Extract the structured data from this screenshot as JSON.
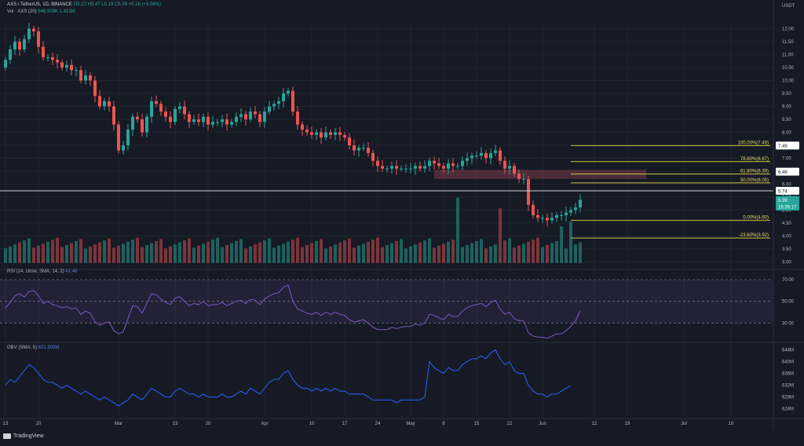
{
  "header": {
    "symbol": "AXS / TetherUS, 1D, BINANCE",
    "ohlc": "O5.22 H5.47 L5.19 C5.39 +0.16 (+3.06%)",
    "volume_label": "Vol · AXS (20)",
    "volume_values": "648.909K 1.413M",
    "rsi_label": "RSI (14, close, SMA, 14, 2)",
    "rsi_value": "41.48",
    "obv_label": "OBV (SMA, 5)",
    "obv_value": "631.909M",
    "branding": "TradingView"
  },
  "chart_data": {
    "type": "candlestick",
    "currency_label": "USDT",
    "price_axis": {
      "range": [
        2.8,
        12.2
      ],
      "ticks": [
        "12.00",
        "11.50",
        "11.00",
        "10.50",
        "10.00",
        "9.50",
        "9.00",
        "8.50",
        "8.00",
        "7.50",
        "7.00",
        "6.50",
        "6.00",
        "5.50",
        "5.00",
        "4.50",
        "4.00",
        "3.50",
        "3.00"
      ]
    },
    "time_axis": {
      "labels": [
        "13",
        "20",
        "Mar",
        "13",
        "20",
        "Apr",
        "10",
        "17",
        "24",
        "May",
        "8",
        "15",
        "22",
        "Jun",
        "12",
        "19",
        "Jul",
        "10"
      ],
      "label_day_index": [
        0,
        7,
        24,
        36,
        43,
        55,
        65,
        72,
        79,
        86,
        93,
        100,
        107,
        114,
        125,
        132,
        144,
        154
      ]
    },
    "close_series": [
      10.8,
      11.2,
      11.5,
      11.2,
      11.6,
      12.0,
      11.9,
      11.3,
      10.9,
      10.9,
      10.8,
      10.7,
      10.5,
      10.6,
      10.4,
      10.4,
      10.0,
      10.2,
      10.0,
      9.4,
      9.0,
      9.2,
      9.0,
      8.3,
      7.3,
      7.5,
      8.1,
      8.6,
      8.5,
      8.0,
      8.6,
      9.2,
      9.1,
      8.8,
      8.6,
      8.4,
      8.9,
      9.0,
      8.7,
      8.4,
      8.5,
      8.4,
      8.6,
      8.3,
      8.4,
      8.4,
      8.5,
      8.3,
      8.4,
      8.6,
      8.7,
      8.5,
      8.8,
      8.7,
      8.4,
      8.8,
      9.0,
      9.1,
      9.2,
      9.5,
      9.6,
      8.8,
      8.3,
      8.1,
      8.0,
      7.9,
      8.0,
      7.8,
      8.0,
      7.9,
      8.0,
      7.9,
      7.8,
      7.5,
      7.3,
      7.4,
      7.4,
      7.2,
      6.9,
      6.7,
      6.6,
      6.6,
      6.7,
      6.6,
      6.6,
      6.6,
      6.6,
      6.7,
      6.6,
      6.7,
      6.9,
      6.8,
      6.7,
      6.6,
      6.8,
      6.7,
      6.7,
      6.9,
      7.0,
      7.1,
      7.1,
      7.2,
      7.0,
      7.2,
      7.3,
      6.9,
      6.6,
      6.7,
      6.4,
      6.2,
      6.2,
      5.2,
      4.8,
      4.7,
      4.7,
      4.6,
      4.7,
      4.8,
      4.8,
      4.9,
      5.0,
      5.1,
      5.39
    ],
    "fibonacci": [
      {
        "label": "100.00%(7.49)",
        "value": 7.49
      },
      {
        "label": "78.60%(6.87)",
        "value": 6.87
      },
      {
        "label": "61.80%(6.39)",
        "value": 6.39
      },
      {
        "label": "50.00%(6.05)",
        "value": 6.05
      },
      {
        "label": "0.00%(4.60)",
        "value": 4.6
      },
      {
        "label": "-23.60%(3.92)",
        "value": 3.92
      }
    ],
    "horizontal_line": {
      "value": 5.74,
      "label": "5.74"
    },
    "resistance_zone": {
      "from": 6.2,
      "to": 6.55
    },
    "price_labels": [
      {
        "text": "7.49",
        "value": 7.49,
        "bg": "#ffffff",
        "fg": "#131722"
      },
      {
        "text": "6.48",
        "value": 6.48,
        "bg": "#ffffff",
        "fg": "#131722"
      },
      {
        "text": "5.74",
        "value": 5.74,
        "bg": "#ffffff",
        "fg": "#131722"
      },
      {
        "text": "5.39",
        "value": 5.39,
        "bg": "#26a69a",
        "fg": "#ffffff"
      },
      {
        "text": "16:39:17",
        "value": 5.13,
        "bg": "#26a69a",
        "fg": "#ffffff"
      }
    ],
    "volume_spikes": [
      {
        "index": 105,
        "height": 0.82
      },
      {
        "index": 118,
        "height": 0.55
      },
      {
        "index": 120,
        "height": 0.62
      },
      {
        "index": 96,
        "height": 0.98
      },
      {
        "index": 96,
        "height": 0.98
      }
    ],
    "rsi": {
      "ticks": [
        "70.00",
        "50.00",
        "30.00"
      ],
      "tick_values": [
        70,
        50,
        30
      ],
      "range": [
        18,
        78
      ],
      "values": [
        44,
        49,
        55,
        57,
        54,
        59,
        60,
        55,
        48,
        50,
        47,
        46,
        44,
        45,
        43,
        44,
        38,
        41,
        39,
        31,
        28,
        30,
        31,
        23,
        20,
        22,
        34,
        46,
        45,
        39,
        48,
        57,
        56,
        52,
        49,
        47,
        53,
        54,
        50,
        46,
        48,
        47,
        50,
        46,
        47,
        47,
        49,
        46,
        48,
        50,
        51,
        48,
        52,
        51,
        47,
        52,
        55,
        57,
        58,
        63,
        65,
        50,
        43,
        41,
        39,
        38,
        40,
        37,
        40,
        38,
        40,
        38,
        37,
        33,
        31,
        32,
        33,
        30,
        26,
        24,
        24,
        24,
        26,
        25,
        26,
        27,
        27,
        29,
        28,
        30,
        38,
        37,
        35,
        33,
        38,
        36,
        36,
        41,
        44,
        46,
        47,
        48,
        45,
        49,
        51,
        43,
        38,
        40,
        34,
        32,
        32,
        21,
        18,
        17,
        17,
        16,
        18,
        20,
        20,
        23,
        27,
        32,
        41.5
      ]
    },
    "obv": {
      "ticks": [
        "644M",
        "640M",
        "636M",
        "632M",
        "628M",
        "624M"
      ],
      "tick_values": [
        644,
        640,
        636,
        632,
        628,
        624
      ],
      "range": [
        621.5,
        645.5
      ],
      "values": [
        632,
        634,
        633,
        635,
        637,
        639,
        638,
        636,
        634,
        633,
        633,
        632,
        631,
        632,
        631,
        630,
        629,
        630,
        629,
        628,
        627,
        628,
        627,
        626,
        625,
        626,
        627,
        629,
        628,
        627,
        629,
        631,
        630,
        629,
        628,
        628,
        630,
        631,
        630,
        629,
        629,
        628,
        629,
        628,
        628,
        628,
        629,
        628,
        628,
        629,
        630,
        629,
        631,
        630,
        629,
        631,
        633,
        634,
        634,
        636,
        637,
        634,
        632,
        631,
        631,
        630,
        631,
        630,
        631,
        630,
        631,
        630,
        630,
        629,
        629,
        629,
        629,
        628,
        627,
        627,
        627,
        627,
        627,
        626,
        627,
        627,
        627,
        627,
        627,
        628,
        640,
        638,
        637,
        636,
        638,
        637,
        637,
        639,
        640,
        641,
        641,
        642,
        641,
        643,
        644,
        641,
        639,
        640,
        637,
        636,
        636,
        632,
        630,
        629,
        629,
        628,
        629,
        629,
        630,
        631,
        631.9
      ]
    }
  }
}
